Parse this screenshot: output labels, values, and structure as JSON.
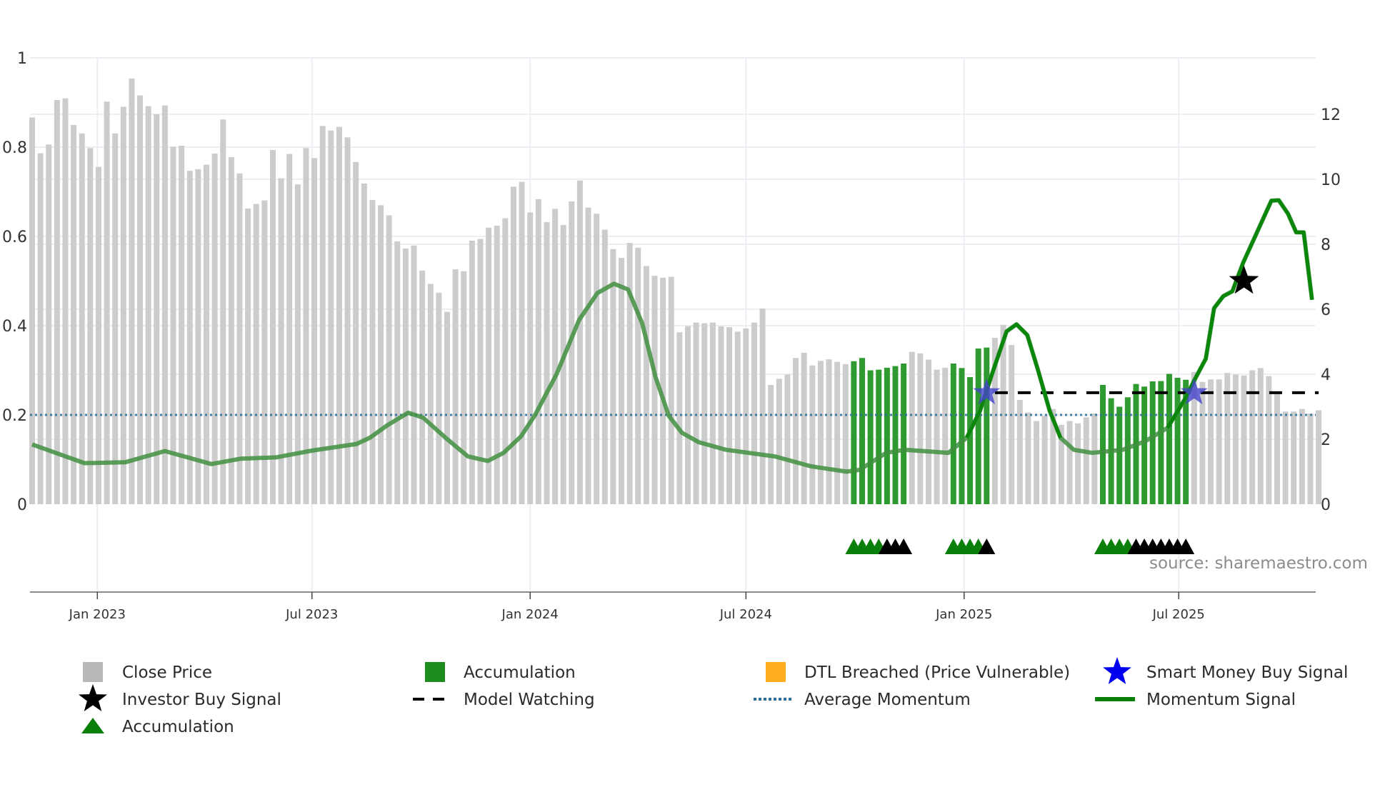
{
  "chart_data": {
    "type": "bar",
    "title": "",
    "x_start": "2022-11-07",
    "x_step_days": 7,
    "x_unit": "week index",
    "left_axis": {
      "ticks": [
        0,
        0.2,
        0.4,
        0.6,
        0.8,
        1
      ],
      "labels": [
        "0",
        "0.2",
        "0.4",
        "0.6",
        "0.8",
        "1"
      ],
      "ylim": [
        0,
        1
      ]
    },
    "right_axis": {
      "ticks": [
        0,
        2,
        4,
        6,
        8,
        10,
        12
      ],
      "labels": [
        "0",
        "2",
        "4",
        "6",
        "8",
        "10",
        "12"
      ],
      "ylim": [
        0,
        12.2
      ]
    },
    "x_ticks": [
      {
        "date": "2023-01-01",
        "label": "Jan 2023"
      },
      {
        "date": "2023-07-01",
        "label": "Jul 2023"
      },
      {
        "date": "2024-01-01",
        "label": "Jan 2024"
      },
      {
        "date": "2024-07-01",
        "label": "Jul 2024"
      },
      {
        "date": "2025-01-01",
        "label": "Jan 2025"
      },
      {
        "date": "2025-07-01",
        "label": "Jul 2025"
      }
    ],
    "close_price": [
      11.9,
      10.8,
      11.07,
      12.44,
      12.49,
      11.67,
      11.41,
      10.96,
      10.38,
      12.39,
      11.41,
      12.23,
      13.1,
      12.58,
      12.25,
      12.0,
      12.27,
      11.0,
      11.03,
      10.26,
      10.31,
      10.45,
      10.79,
      11.84,
      10.68,
      10.18,
      9.1,
      9.24,
      9.35,
      10.9,
      10.03,
      10.78,
      9.84,
      10.96,
      10.65,
      11.64,
      11.5,
      11.61,
      11.29,
      10.53,
      9.87,
      9.36,
      9.2,
      8.89,
      8.09,
      7.87,
      7.96,
      7.19,
      6.78,
      6.51,
      5.92,
      7.23,
      7.17,
      8.11,
      8.16,
      8.51,
      8.57,
      8.8,
      9.77,
      9.92,
      8.98,
      9.39,
      8.68,
      9.09,
      8.59,
      9.32,
      9.96,
      9.13,
      8.94,
      8.45,
      7.85,
      7.58,
      8.04,
      7.89,
      7.33,
      7.03,
      6.97,
      7.0,
      5.29,
      5.48,
      5.59,
      5.57,
      5.59,
      5.47,
      5.45,
      5.31,
      5.41,
      5.59,
      6.02,
      3.67,
      3.86,
      3.99,
      4.5,
      4.66,
      4.27,
      4.41,
      4.46,
      4.38,
      4.31,
      4.4,
      4.5,
      4.12,
      4.14,
      4.2,
      4.25,
      4.33,
      4.69,
      4.64,
      4.45,
      4.14,
      4.2,
      4.33,
      4.19,
      3.91,
      4.79,
      4.82,
      5.12,
      5.52,
      4.9,
      3.21,
      2.82,
      2.56,
      2.72,
      2.93,
      2.44,
      2.56,
      2.49,
      2.67,
      2.79,
      3.67,
      3.26,
      3.0,
      3.29,
      3.7,
      3.62,
      3.78,
      3.79,
      4.01,
      3.89,
      3.83,
      4.07,
      3.76,
      3.84,
      3.84,
      4.04,
      3.99,
      3.96,
      4.12,
      4.19,
      3.94,
      3.39,
      2.85,
      2.85,
      2.93,
      2.79,
      2.89
    ],
    "accumulation_ranges": [
      [
        99,
        105
      ],
      [
        111,
        115
      ],
      [
        129,
        139
      ]
    ],
    "momentum_signal": [
      [
        0,
        0.134
      ],
      [
        6.3,
        0.092
      ],
      [
        11.2,
        0.094
      ],
      [
        16,
        0.119
      ],
      [
        21.6,
        0.09
      ],
      [
        25.1,
        0.102
      ],
      [
        29.4,
        0.105
      ],
      [
        33.7,
        0.12
      ],
      [
        39.1,
        0.135
      ],
      [
        40.7,
        0.149
      ],
      [
        42.8,
        0.177
      ],
      [
        45.3,
        0.205
      ],
      [
        47.1,
        0.194
      ],
      [
        49.8,
        0.149
      ],
      [
        52.5,
        0.107
      ],
      [
        54.9,
        0.097
      ],
      [
        56.8,
        0.115
      ],
      [
        58.9,
        0.152
      ],
      [
        60.6,
        0.2
      ],
      [
        63.2,
        0.292
      ],
      [
        65.9,
        0.413
      ],
      [
        68.1,
        0.473
      ],
      [
        70.1,
        0.494
      ],
      [
        71.8,
        0.481
      ],
      [
        73.5,
        0.405
      ],
      [
        75.1,
        0.285
      ],
      [
        76.7,
        0.198
      ],
      [
        78.3,
        0.16
      ],
      [
        80.3,
        0.139
      ],
      [
        83.6,
        0.122
      ],
      [
        89.5,
        0.107
      ],
      [
        93.8,
        0.085
      ],
      [
        98.1,
        0.073
      ],
      [
        99.7,
        0.077
      ],
      [
        102.9,
        0.115
      ],
      [
        105.1,
        0.122
      ],
      [
        110.4,
        0.115
      ],
      [
        112.6,
        0.149
      ],
      [
        114.2,
        0.209
      ],
      [
        115.8,
        0.3
      ],
      [
        117.4,
        0.387
      ],
      [
        118.6,
        0.403
      ],
      [
        119.9,
        0.379
      ],
      [
        121.2,
        0.3
      ],
      [
        122.6,
        0.209
      ],
      [
        123.9,
        0.149
      ],
      [
        125.5,
        0.122
      ],
      [
        127.7,
        0.115
      ],
      [
        131.4,
        0.122
      ],
      [
        134.1,
        0.141
      ],
      [
        136.8,
        0.171
      ],
      [
        139,
        0.239
      ],
      [
        140,
        0.277
      ],
      [
        141.4,
        0.326
      ],
      [
        142.4,
        0.439
      ],
      [
        143.5,
        0.466
      ],
      [
        144.6,
        0.477
      ],
      [
        145.9,
        0.541
      ],
      [
        147.5,
        0.606
      ],
      [
        149.3,
        0.68
      ],
      [
        150.2,
        0.681
      ],
      [
        151.3,
        0.651
      ],
      [
        152.3,
        0.609
      ],
      [
        153.2,
        0.609
      ],
      [
        154.2,
        0.458
      ]
    ],
    "momentum_highlight_ranges": [
      [
        112.6,
        123.9
      ],
      [
        136.8,
        154.2
      ]
    ],
    "average_momentum": 0.2,
    "model_watching": {
      "level": 3.43,
      "from": 116,
      "to": 155
    },
    "smart_money_buy_signals": [
      {
        "x": 115,
        "price": 3.43
      },
      {
        "x": 140,
        "price": 3.43
      }
    ],
    "investor_buy_signals": [
      {
        "x": 146,
        "momentum": 0.5
      }
    ],
    "accumulation_markers": [
      {
        "x": 99,
        "type": "green"
      },
      {
        "x": 100,
        "type": "green"
      },
      {
        "x": 101,
        "type": "green"
      },
      {
        "x": 102,
        "type": "green"
      },
      {
        "x": 103,
        "type": "black"
      },
      {
        "x": 104,
        "type": "black"
      },
      {
        "x": 105,
        "type": "black"
      },
      {
        "x": 111,
        "type": "green"
      },
      {
        "x": 112,
        "type": "green"
      },
      {
        "x": 113,
        "type": "green"
      },
      {
        "x": 114,
        "type": "green"
      },
      {
        "x": 115,
        "type": "black"
      },
      {
        "x": 129,
        "type": "green"
      },
      {
        "x": 130,
        "type": "green"
      },
      {
        "x": 131,
        "type": "green"
      },
      {
        "x": 132,
        "type": "green"
      },
      {
        "x": 133,
        "type": "black"
      },
      {
        "x": 134,
        "type": "black"
      },
      {
        "x": 135,
        "type": "black"
      },
      {
        "x": 136,
        "type": "black"
      },
      {
        "x": 137,
        "type": "black"
      },
      {
        "x": 138,
        "type": "black"
      },
      {
        "x": 139,
        "type": "black"
      }
    ],
    "legend": [
      {
        "label": "Close Price",
        "symbol": "square",
        "color": "#b8b8b8"
      },
      {
        "label": "Accumulation",
        "symbol": "square",
        "color": "#1e8c1e"
      },
      {
        "label": "DTL Breached (Price Vulnerable)",
        "symbol": "square",
        "color": "#ffad1f"
      },
      {
        "label": "Smart Money Buy Signal",
        "symbol": "star",
        "color": "#0000ee"
      },
      {
        "label": "Investor Buy Signal",
        "symbol": "star",
        "color": "#000000"
      },
      {
        "label": "Model Watching",
        "symbol": "dash",
        "color": "#000000"
      },
      {
        "label": "Average Momentum",
        "symbol": "dot",
        "color": "#2b6f9a"
      },
      {
        "label": "Momentum Signal",
        "symbol": "line",
        "color": "#0a800a"
      },
      {
        "label": "Accumulation",
        "symbol": "triangle",
        "color": "#0a800a"
      }
    ],
    "legend_placement": "bottom",
    "source": "source: sharemaestro.com"
  },
  "colors": {
    "bar": "#c9c9c9",
    "bar_accum": "#2f9a2f",
    "momentum_faded": "#3f8f3f",
    "momentum": "#0a860a",
    "avg": "#2b6f9a",
    "smart_star": "#4444cc",
    "grid": "#eceef3",
    "axis": "#8a8a8a"
  }
}
